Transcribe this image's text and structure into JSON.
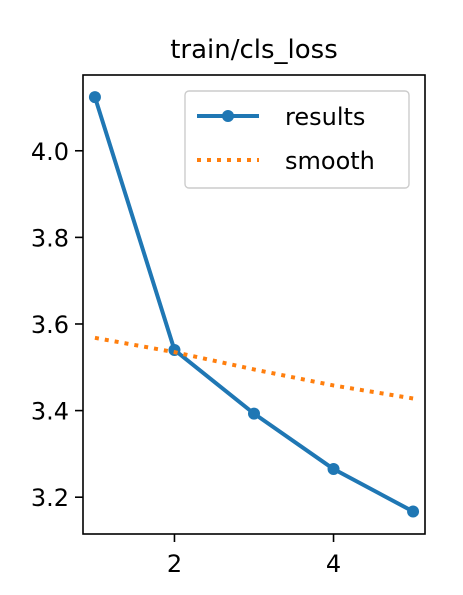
{
  "chart_data": {
    "type": "line",
    "title": "train/cls_loss",
    "xlabel": "",
    "ylabel": "",
    "xlim": [
      0.85,
      5.15
    ],
    "ylim": [
      3.115,
      4.175
    ],
    "xticks": [
      2,
      4
    ],
    "xtick_labels": [
      "2",
      "4"
    ],
    "yticks": [
      3.2,
      3.4,
      3.6,
      3.8,
      4.0
    ],
    "ytick_labels": [
      "3.2",
      "3.4",
      "3.6",
      "3.8",
      "4.0"
    ],
    "grid": false,
    "legend_position": "upper-right",
    "series": [
      {
        "name": "results",
        "style": "solid-line-with-markers",
        "color": "#1f77b4",
        "x": [
          1,
          2,
          3,
          4,
          5
        ],
        "y": [
          4.124,
          3.54,
          3.393,
          3.265,
          3.167
        ]
      },
      {
        "name": "smooth",
        "style": "dotted",
        "color": "#ff7f0e",
        "x": [
          1,
          2,
          3,
          4,
          5
        ],
        "y": [
          3.568,
          3.535,
          3.495,
          3.458,
          3.428
        ]
      }
    ]
  }
}
